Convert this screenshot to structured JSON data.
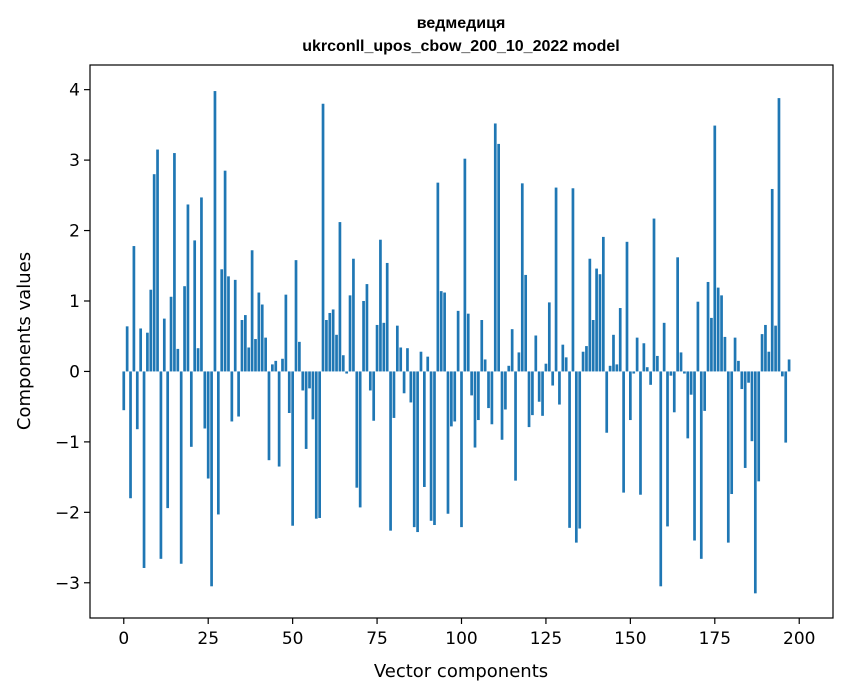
{
  "chart_data": {
    "type": "bar",
    "title_line1": "ведмедиця",
    "title_line2": "ukrconll_upos_cbow_200_10_2022 model",
    "xlabel": "Vector components",
    "ylabel": "Components values",
    "xlim": [
      -10,
      210
    ],
    "ylim": [
      -3.5,
      4.35
    ],
    "xticks": [
      0,
      25,
      50,
      75,
      100,
      125,
      150,
      175,
      200
    ],
    "yticks": [
      -3,
      -2,
      -1,
      0,
      1,
      2,
      3,
      4
    ],
    "bar_color": "#1f77b4",
    "values": [
      -0.55,
      0.64,
      -1.8,
      1.78,
      -0.82,
      0.61,
      -2.79,
      0.55,
      1.16,
      2.8,
      3.15,
      -2.66,
      0.75,
      -1.94,
      1.06,
      3.1,
      0.32,
      -2.73,
      1.21,
      2.37,
      -1.07,
      1.86,
      0.33,
      2.47,
      -0.81,
      -1.52,
      -3.05,
      3.98,
      -2.03,
      1.45,
      2.85,
      1.35,
      -0.71,
      1.3,
      -0.64,
      0.73,
      0.8,
      0.34,
      1.72,
      0.46,
      1.12,
      0.95,
      0.48,
      -1.26,
      0.1,
      0.15,
      -1.35,
      0.18,
      1.09,
      -0.59,
      -2.19,
      1.58,
      0.42,
      -0.27,
      -1.1,
      -0.24,
      -0.68,
      -2.09,
      -2.08,
      3.8,
      0.73,
      0.83,
      0.88,
      0.52,
      2.12,
      0.23,
      -0.03,
      1.08,
      1.6,
      -1.65,
      -1.93,
      1.0,
      1.24,
      -0.27,
      -0.7,
      0.66,
      1.87,
      0.69,
      1.54,
      -2.26,
      -0.66,
      0.65,
      0.34,
      -0.31,
      0.33,
      -0.44,
      -2.21,
      -2.28,
      0.28,
      -1.64,
      0.21,
      -2.12,
      -2.18,
      2.68,
      1.14,
      1.12,
      -2.02,
      -0.78,
      -0.71,
      0.86,
      -2.21,
      3.02,
      0.82,
      -0.34,
      -1.08,
      -0.69,
      0.73,
      0.17,
      -0.52,
      -0.75,
      3.52,
      3.23,
      -0.97,
      -0.54,
      0.08,
      0.6,
      -1.55,
      0.27,
      2.67,
      1.37,
      -0.79,
      -0.62,
      0.51,
      -0.43,
      -0.63,
      0.11,
      0.98,
      -0.2,
      2.61,
      -0.47,
      0.38,
      0.2,
      -2.22,
      2.6,
      -2.43,
      -2.23,
      0.28,
      0.36,
      1.6,
      0.73,
      1.46,
      1.38,
      1.91,
      -0.87,
      0.08,
      0.52,
      0.1,
      0.9,
      -1.72,
      1.84,
      -0.69,
      -0.03,
      0.48,
      -1.75,
      0.4,
      0.06,
      -0.19,
      2.17,
      0.22,
      -3.05,
      0.69,
      -2.2,
      -0.06,
      -0.58,
      1.62,
      0.27,
      -0.03,
      -0.95,
      -0.33,
      -2.4,
      0.99,
      -2.66,
      -0.56,
      1.27,
      0.76,
      3.49,
      1.19,
      1.08,
      0.49,
      -2.43,
      -1.74,
      0.48,
      0.15,
      -0.25,
      -1.37,
      -0.16,
      -0.99,
      -3.15,
      -1.56,
      0.53,
      0.66,
      0.28,
      2.59,
      0.65,
      3.88,
      -0.07,
      -1.01,
      0.17
    ]
  }
}
